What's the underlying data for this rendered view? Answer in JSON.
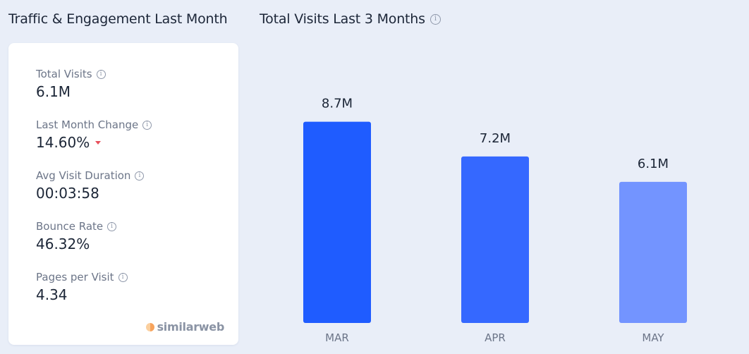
{
  "left_panel": {
    "title": "Traffic & Engagement Last Month",
    "metrics": [
      {
        "label": "Total Visits",
        "value": "6.1M"
      },
      {
        "label": "Last Month Change",
        "value": "14.60%",
        "trend": "down"
      },
      {
        "label": "Avg Visit Duration",
        "value": "00:03:58"
      },
      {
        "label": "Bounce Rate",
        "value": "46.32%"
      },
      {
        "label": "Pages per Visit",
        "value": "4.34"
      }
    ],
    "brand": "similarweb"
  },
  "icons": {
    "info": "info-circle-icon",
    "trend_down": "caret-down-icon",
    "brand_logo": "similarweb-logo-icon"
  },
  "colors": {
    "background": "#e9eef8",
    "card": "#ffffff",
    "trend_down": "#e8505b",
    "bars": [
      "#1f5cff",
      "#3568ff",
      "#7394ff"
    ]
  },
  "chart_data": {
    "type": "bar",
    "title": "Total Visits Last 3 Months",
    "categories": [
      "MAR",
      "APR",
      "MAY"
    ],
    "values": [
      8.7,
      7.2,
      6.1
    ],
    "value_labels": [
      "8.7M",
      "7.2M",
      "6.1M"
    ],
    "unit": "M",
    "ylim": [
      0,
      10
    ],
    "grid": false,
    "legend": "none"
  }
}
